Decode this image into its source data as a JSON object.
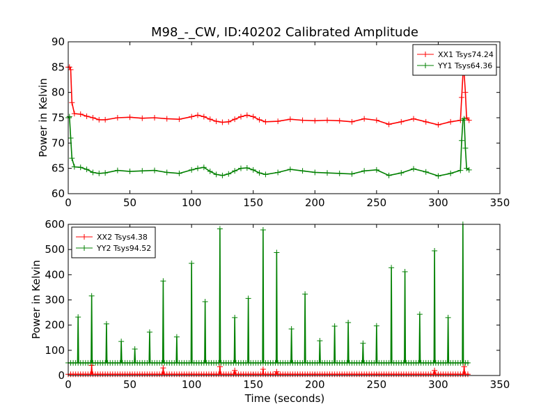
{
  "chart_data": [
    {
      "type": "line",
      "title": "M98_-_CW, ID:40202 Calibrated Amplitude",
      "xlabel": "",
      "ylabel": "Power in Kelvin",
      "xlim": [
        0,
        350
      ],
      "ylim": [
        60,
        90
      ],
      "xticks": [
        "0",
        "50",
        "100",
        "150",
        "200",
        "250",
        "300",
        "350"
      ],
      "yticks": [
        "60",
        "65",
        "70",
        "75",
        "80",
        "85",
        "90"
      ],
      "legend_position": "top-right",
      "grid": false,
      "series": [
        {
          "name": "XX1 Tsys74.24",
          "color": "#ff0000",
          "x": [
            0,
            1,
            2,
            3,
            5,
            10,
            15,
            20,
            25,
            30,
            40,
            50,
            60,
            70,
            80,
            90,
            100,
            105,
            110,
            115,
            120,
            125,
            130,
            135,
            140,
            145,
            150,
            155,
            160,
            170,
            180,
            190,
            200,
            210,
            220,
            230,
            240,
            250,
            260,
            270,
            280,
            290,
            300,
            310,
            318,
            319,
            320,
            321,
            322,
            323,
            325
          ],
          "y": [
            85,
            85,
            84.5,
            78,
            75.8,
            75.7,
            75.3,
            75,
            74.6,
            74.6,
            75,
            75.1,
            74.9,
            75,
            74.8,
            74.7,
            75.2,
            75.5,
            75.2,
            74.7,
            74.3,
            74.1,
            74.2,
            74.7,
            75.2,
            75.5,
            75.2,
            74.6,
            74.2,
            74.3,
            74.7,
            74.5,
            74.4,
            74.5,
            74.4,
            74.2,
            74.8,
            74.5,
            73.7,
            74.2,
            74.8,
            74.2,
            73.6,
            74.2,
            74.5,
            79,
            83.5,
            83.8,
            80,
            75,
            74.5
          ]
        },
        {
          "name": "YY1 Tsys64.36",
          "color": "#008000",
          "x": [
            0,
            1,
            2,
            3,
            5,
            10,
            15,
            20,
            25,
            30,
            40,
            50,
            60,
            70,
            80,
            90,
            100,
            105,
            110,
            115,
            120,
            125,
            130,
            135,
            140,
            145,
            150,
            155,
            160,
            170,
            180,
            190,
            200,
            210,
            220,
            230,
            240,
            250,
            260,
            270,
            280,
            290,
            300,
            310,
            318,
            319,
            320,
            321,
            322,
            323,
            325
          ],
          "y": [
            75,
            75.2,
            71,
            67,
            65.3,
            65.2,
            64.8,
            64.2,
            64,
            64.1,
            64.6,
            64.4,
            64.5,
            64.6,
            64.2,
            64,
            64.7,
            65,
            65.2,
            64.4,
            63.8,
            63.6,
            63.9,
            64.5,
            65,
            65.1,
            64.7,
            64.1,
            63.8,
            64.2,
            64.8,
            64.5,
            64.2,
            64.1,
            64,
            63.9,
            64.5,
            64.7,
            63.6,
            64.1,
            64.9,
            64.3,
            63.5,
            64,
            64.6,
            70.5,
            74.5,
            74.8,
            69,
            65,
            64.7
          ]
        }
      ]
    },
    {
      "type": "line",
      "title": "",
      "xlabel": "Time (seconds)",
      "ylabel": "Power in Kelvin",
      "xlim": [
        0,
        350
      ],
      "ylim": [
        0,
        600
      ],
      "xticks": [
        "0",
        "50",
        "100",
        "150",
        "200",
        "250",
        "300",
        "350"
      ],
      "yticks": [
        "0",
        "100",
        "200",
        "300",
        "400",
        "500",
        "600"
      ],
      "legend_position": "top-left",
      "grid": false,
      "baselines": {
        "XX2 Tsys4.38": 5,
        "YY2 Tsys94.52": 50
      },
      "series": [
        {
          "name": "XX2 Tsys4.38",
          "color": "#ff0000",
          "spikes": [
            {
              "x": 19,
              "y": 40
            },
            {
              "x": 77,
              "y": 30
            },
            {
              "x": 123,
              "y": 35
            },
            {
              "x": 135,
              "y": 20
            },
            {
              "x": 158,
              "y": 25
            },
            {
              "x": 169,
              "y": 15
            },
            {
              "x": 297,
              "y": 20
            },
            {
              "x": 321,
              "y": 35
            }
          ]
        },
        {
          "name": "YY2 Tsys94.52",
          "color": "#008000",
          "spikes": [
            {
              "x": 8,
              "y": 232
            },
            {
              "x": 19,
              "y": 316
            },
            {
              "x": 31,
              "y": 205
            },
            {
              "x": 43,
              "y": 135
            },
            {
              "x": 54,
              "y": 105
            },
            {
              "x": 66,
              "y": 172
            },
            {
              "x": 77,
              "y": 375
            },
            {
              "x": 88,
              "y": 153
            },
            {
              "x": 100,
              "y": 445
            },
            {
              "x": 111,
              "y": 293
            },
            {
              "x": 123,
              "y": 582
            },
            {
              "x": 135,
              "y": 230
            },
            {
              "x": 146,
              "y": 306
            },
            {
              "x": 158,
              "y": 578
            },
            {
              "x": 169,
              "y": 488
            },
            {
              "x": 181,
              "y": 185
            },
            {
              "x": 192,
              "y": 323
            },
            {
              "x": 204,
              "y": 138
            },
            {
              "x": 216,
              "y": 196
            },
            {
              "x": 227,
              "y": 210
            },
            {
              "x": 239,
              "y": 128
            },
            {
              "x": 250,
              "y": 197
            },
            {
              "x": 262,
              "y": 428
            },
            {
              "x": 273,
              "y": 412
            },
            {
              "x": 285,
              "y": 243
            },
            {
              "x": 297,
              "y": 495
            },
            {
              "x": 308,
              "y": 230
            },
            {
              "x": 320,
              "y": 600
            }
          ]
        }
      ]
    }
  ]
}
